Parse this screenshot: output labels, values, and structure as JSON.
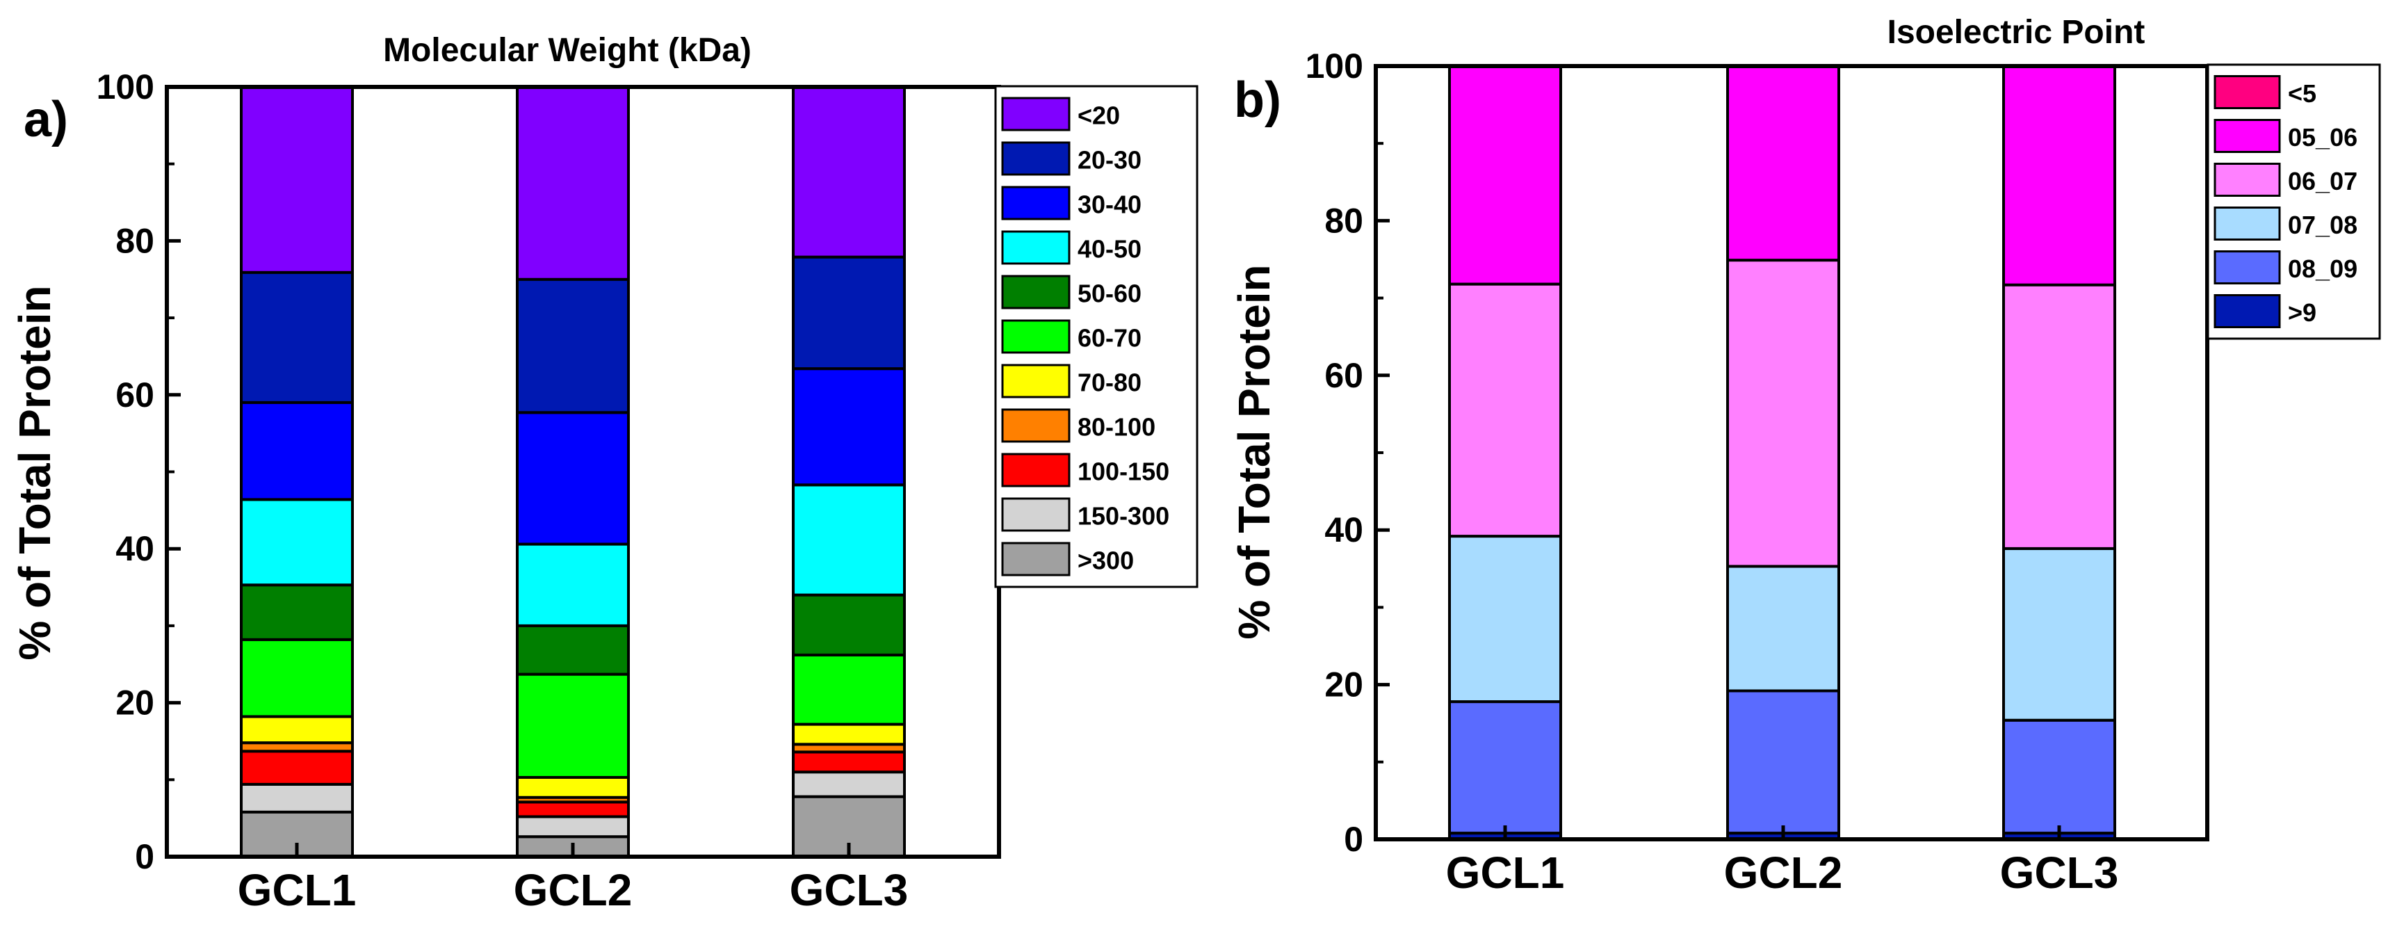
{
  "chart_data": [
    {
      "type": "bar",
      "stacked": true,
      "panel_label": "a)",
      "title": "Molecular Weight (kDa)",
      "xlabel": "",
      "ylabel": "% of Total Protein",
      "ylim": [
        0,
        100
      ],
      "yticks": [
        "0",
        "20",
        "40",
        "60",
        "80",
        "100"
      ],
      "categories": [
        "GCL1",
        "GCL2",
        "GCL3"
      ],
      "legend_position": "right",
      "series": [
        {
          "name": ">300",
          "color": "#A0A0A0",
          "values": [
            5.8,
            2.6,
            7.8
          ]
        },
        {
          "name": "150-300",
          "color": "#D3D3D3",
          "values": [
            3.6,
            2.6,
            3.2
          ]
        },
        {
          "name": "100-150",
          "color": "#FF0000",
          "values": [
            4.3,
            1.9,
            2.6
          ]
        },
        {
          "name": "80-100",
          "color": "#FF8000",
          "values": [
            1.1,
            0.6,
            1.0
          ]
        },
        {
          "name": "70-80",
          "color": "#FFFF00",
          "values": [
            3.4,
            2.6,
            2.6
          ]
        },
        {
          "name": "60-70",
          "color": "#00FF00",
          "values": [
            10.0,
            13.4,
            9.0
          ]
        },
        {
          "name": "50-60",
          "color": "#007F00",
          "values": [
            7.1,
            6.3,
            7.8
          ]
        },
        {
          "name": "40-50",
          "color": "#00FFFF",
          "values": [
            11.1,
            10.6,
            14.3
          ]
        },
        {
          "name": "30-40",
          "color": "#0000FF",
          "values": [
            12.6,
            17.1,
            15.1
          ]
        },
        {
          "name": "20-30",
          "color": "#0019B2",
          "values": [
            16.9,
            17.3,
            14.5
          ]
        },
        {
          "name": "<20",
          "color": "#8000FF",
          "values": [
            24.1,
            25.0,
            22.1
          ]
        }
      ],
      "legend_order": [
        "<20",
        "20-30",
        "30-40",
        "40-50",
        "50-60",
        "60-70",
        "70-80",
        "80-100",
        "100-150",
        "150-300",
        ">300"
      ]
    },
    {
      "type": "bar",
      "stacked": true,
      "panel_label": "b)",
      "title": "Isoelectric Point",
      "xlabel": "",
      "ylabel": "% of Total Protein",
      "ylim": [
        0,
        100
      ],
      "yticks": [
        "0",
        "20",
        "40",
        "60",
        "80",
        "100"
      ],
      "categories": [
        "GCL1",
        "GCL2",
        "GCL3"
      ],
      "legend_position": "top-right",
      "series": [
        {
          "name": ">9",
          "color": "#0019B2",
          "values": [
            0.8,
            0.8,
            0.8
          ]
        },
        {
          "name": "08_09",
          "color": "#5A6BFF",
          "values": [
            17.0,
            18.4,
            14.6
          ]
        },
        {
          "name": "07_08",
          "color": "#A8DCFF",
          "values": [
            21.4,
            16.1,
            22.2
          ]
        },
        {
          "name": "06_07",
          "color": "#FF80FF",
          "values": [
            32.6,
            39.6,
            34.1
          ]
        },
        {
          "name": "05_06",
          "color": "#FF00FF",
          "values": [
            28.2,
            25.1,
            28.3
          ]
        },
        {
          "name": "<5",
          "color": "#FF0080",
          "values": [
            0.0,
            0.0,
            0.0
          ]
        }
      ],
      "legend_order": [
        "<5",
        "05_06",
        "06_07",
        "07_08",
        "08_09",
        ">9"
      ]
    }
  ]
}
